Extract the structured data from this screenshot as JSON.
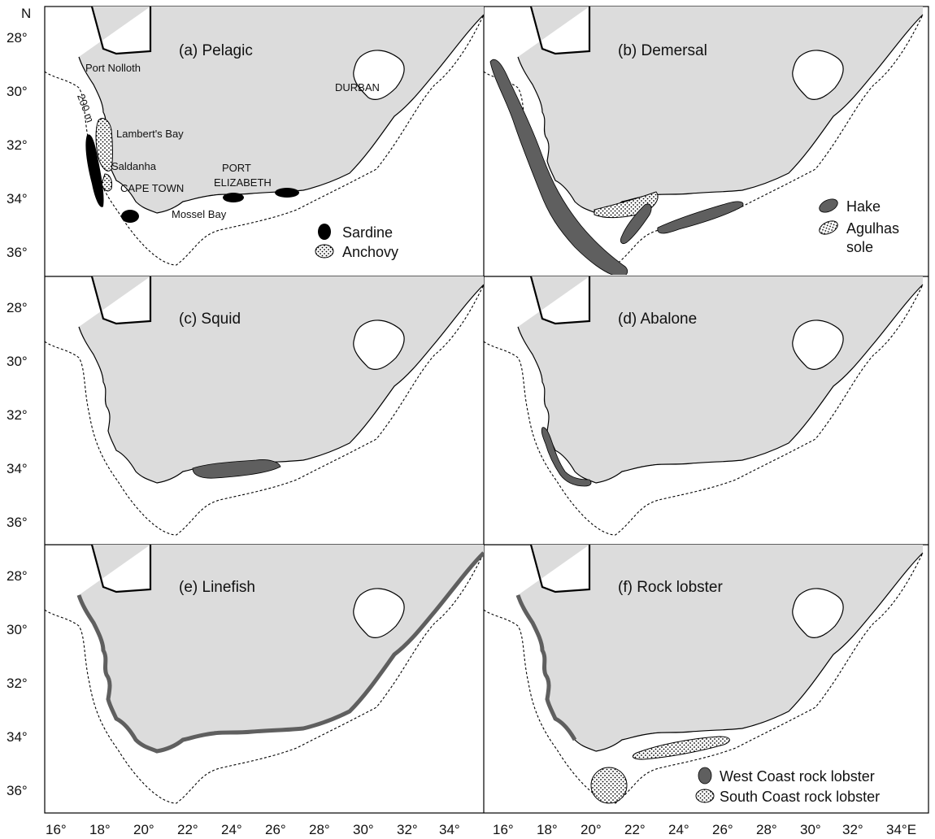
{
  "figure": {
    "north_label": "N",
    "lat_ticks": [
      "28°",
      "30°",
      "32°",
      "34°",
      "36°"
    ],
    "lon_ticks": [
      "16°",
      "18°",
      "20°",
      "22°",
      "24°",
      "26°",
      "28°",
      "30°",
      "32°",
      "34°"
    ],
    "lon_ticks_right": [
      "16°",
      "18°",
      "20°",
      "22°",
      "24°",
      "26°",
      "28°",
      "30°",
      "32°",
      "34°E"
    ],
    "lat_range": [
      27,
      37
    ],
    "lon_range": [
      15.2,
      34.6
    ],
    "colors": {
      "land": "#dcdcdc",
      "fishing_area": "#5f5f5f",
      "sardine": "#000000",
      "outline": "#000000",
      "background": "#ffffff"
    }
  },
  "panels": [
    {
      "id": "a",
      "title": "(a) Pelagic",
      "isobath_label": "200 m",
      "places": [
        "Port Nolloth",
        "DURBAN",
        "Lambert's Bay",
        "Saldanha",
        "CAPE TOWN",
        "PORT",
        "ELIZABETH",
        "Mossel Bay"
      ],
      "legend": [
        {
          "label": "Sardine",
          "symbol": "solid-black"
        },
        {
          "label": "Anchovy",
          "symbol": "stippled"
        }
      ]
    },
    {
      "id": "b",
      "title": "(b) Demersal",
      "legend": [
        {
          "label": "Hake",
          "symbol": "solid-grey"
        },
        {
          "label": "Agulhas",
          "label2": "sole",
          "symbol": "stippled"
        }
      ]
    },
    {
      "id": "c",
      "title": "(c) Squid",
      "legend": []
    },
    {
      "id": "d",
      "title": "(d) Abalone",
      "legend": []
    },
    {
      "id": "e",
      "title": "(e) Linefish",
      "legend": []
    },
    {
      "id": "f",
      "title": "(f) Rock lobster",
      "legend": [
        {
          "label": "West Coast rock lobster",
          "symbol": "solid-grey"
        },
        {
          "label": "South Coast rock lobster",
          "symbol": "stippled"
        }
      ]
    }
  ]
}
